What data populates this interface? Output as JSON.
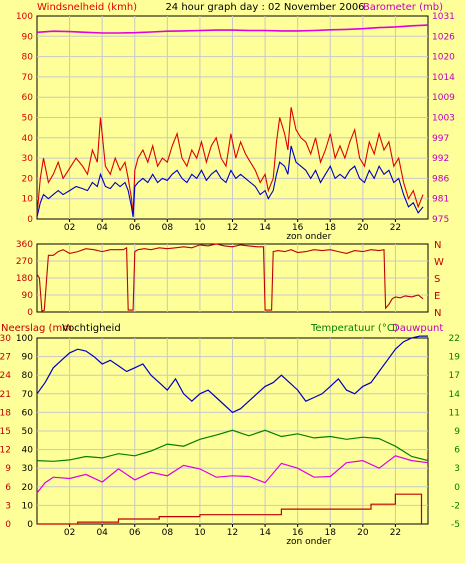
{
  "header": {
    "left_title": "Windsnelheid (kmh)",
    "center_title": "24 hour graph day : 02 November 2006",
    "right_title": "Barometer (mb)"
  },
  "colors": {
    "background": "#FFFF99",
    "plot_bg": "#FFFF99",
    "grid": "#C8C8C8",
    "wind_gust": "#E00000",
    "wind_avg": "#0000C0",
    "barometer": "#E000E0",
    "direction": "#C00000",
    "humidity": "#0000C0",
    "temperature": "#008000",
    "dewpoint": "#E000E0",
    "rain": "#C00000",
    "left_axis_text": "#E00000",
    "right_axis_text": "#C000C0",
    "temp_text": "#008000",
    "dew_text": "#C000C0"
  },
  "chart_data": [
    {
      "type": "line",
      "title": "24 hour graph day : 02 November 2006",
      "ylabel": "Windsnelheid (kmh)",
      "ylabel_right": "Barometer (mb)",
      "ylim": [
        0,
        100
      ],
      "ylim_right": [
        975,
        1031
      ],
      "yticks": [
        0,
        10,
        20,
        30,
        40,
        50,
        60,
        70,
        80,
        90,
        100
      ],
      "yticks_right": [
        975,
        981,
        986,
        992,
        997,
        1003,
        1009,
        1014,
        1020,
        1026,
        1031
      ],
      "xlim": [
        0,
        24
      ],
      "xticks": [
        "02",
        "04",
        "06",
        "08",
        "10",
        "12",
        "14",
        "16",
        "18",
        "20",
        "22"
      ],
      "annotation": "zon onder",
      "series": [
        {
          "name": "Windstoten",
          "axis": "left",
          "x": [
            0,
            0.2,
            0.4,
            0.7,
            1.0,
            1.3,
            1.6,
            2.0,
            2.4,
            2.8,
            3.1,
            3.4,
            3.7,
            3.9,
            4.2,
            4.5,
            4.8,
            5.1,
            5.4,
            5.6,
            5.8,
            5.9,
            6.0,
            6.2,
            6.5,
            6.8,
            7.1,
            7.4,
            7.7,
            8.0,
            8.3,
            8.6,
            8.9,
            9.2,
            9.5,
            9.8,
            10.1,
            10.4,
            10.7,
            11.0,
            11.3,
            11.6,
            11.9,
            12.2,
            12.5,
            12.8,
            13.1,
            13.4,
            13.7,
            14.0,
            14.2,
            14.5,
            14.7,
            14.9,
            15.2,
            15.4,
            15.6,
            15.9,
            16.2,
            16.5,
            16.8,
            17.1,
            17.4,
            17.7,
            18.0,
            18.3,
            18.6,
            18.9,
            19.2,
            19.5,
            19.8,
            20.1,
            20.4,
            20.7,
            21.0,
            21.3,
            21.6,
            21.9,
            22.2,
            22.5,
            22.8,
            23.1,
            23.4,
            23.7
          ],
          "values": [
            2,
            20,
            30,
            18,
            22,
            28,
            20,
            25,
            30,
            26,
            22,
            34,
            28,
            50,
            26,
            22,
            30,
            24,
            28,
            20,
            10,
            2,
            24,
            30,
            34,
            28,
            36,
            26,
            30,
            28,
            36,
            42,
            30,
            26,
            34,
            30,
            38,
            28,
            36,
            40,
            30,
            26,
            42,
            30,
            38,
            32,
            28,
            24,
            18,
            22,
            14,
            20,
            38,
            50,
            42,
            34,
            55,
            44,
            40,
            38,
            32,
            40,
            28,
            34,
            42,
            30,
            36,
            30,
            38,
            44,
            30,
            26,
            38,
            32,
            42,
            34,
            38,
            26,
            30,
            18,
            10,
            14,
            6,
            12
          ]
        },
        {
          "name": "Windsnelheid",
          "axis": "left",
          "x": [
            0,
            0.2,
            0.4,
            0.7,
            1.0,
            1.3,
            1.6,
            2.0,
            2.4,
            2.8,
            3.1,
            3.4,
            3.7,
            3.9,
            4.2,
            4.5,
            4.8,
            5.1,
            5.4,
            5.6,
            5.8,
            5.9,
            6.0,
            6.2,
            6.5,
            6.8,
            7.1,
            7.4,
            7.7,
            8.0,
            8.3,
            8.6,
            8.9,
            9.2,
            9.5,
            9.8,
            10.1,
            10.4,
            10.7,
            11.0,
            11.3,
            11.6,
            11.9,
            12.2,
            12.5,
            12.8,
            13.1,
            13.4,
            13.7,
            14.0,
            14.2,
            14.5,
            14.7,
            14.9,
            15.2,
            15.4,
            15.6,
            15.9,
            16.2,
            16.5,
            16.8,
            17.1,
            17.4,
            17.7,
            18.0,
            18.3,
            18.6,
            18.9,
            19.2,
            19.5,
            19.8,
            20.1,
            20.4,
            20.7,
            21.0,
            21.3,
            21.6,
            21.9,
            22.2,
            22.5,
            22.8,
            23.1,
            23.4,
            23.7
          ],
          "values": [
            1,
            8,
            12,
            10,
            12,
            14,
            12,
            14,
            16,
            15,
            14,
            18,
            16,
            22,
            16,
            15,
            18,
            16,
            18,
            14,
            6,
            1,
            16,
            18,
            20,
            18,
            22,
            18,
            20,
            19,
            22,
            24,
            20,
            18,
            22,
            20,
            24,
            19,
            22,
            24,
            20,
            18,
            24,
            20,
            22,
            20,
            18,
            16,
            12,
            14,
            10,
            14,
            22,
            28,
            26,
            22,
            36,
            28,
            26,
            24,
            20,
            24,
            18,
            22,
            26,
            20,
            22,
            20,
            24,
            26,
            20,
            18,
            24,
            20,
            26,
            22,
            24,
            18,
            20,
            12,
            6,
            8,
            3,
            6
          ]
        },
        {
          "name": "Barometer",
          "axis": "right",
          "x": [
            0,
            1,
            2,
            3,
            4,
            5,
            6,
            7,
            8,
            9,
            10,
            11,
            12,
            13,
            14,
            15,
            16,
            17,
            18,
            19,
            20,
            21,
            22,
            23,
            24
          ],
          "values": [
            1026.5,
            1026.8,
            1026.7,
            1026.5,
            1026.3,
            1026.3,
            1026.4,
            1026.6,
            1026.8,
            1026.9,
            1027.0,
            1027.1,
            1027.1,
            1027.0,
            1027.0,
            1026.9,
            1026.9,
            1027.0,
            1027.2,
            1027.3,
            1027.5,
            1027.8,
            1028.0,
            1028.3,
            1028.5
          ]
        }
      ]
    },
    {
      "type": "line",
      "ylim": [
        0,
        360
      ],
      "yticks": [
        0,
        90,
        180,
        270,
        360
      ],
      "yticks_right": [
        "N",
        "E",
        "S",
        "W",
        "N"
      ],
      "xlim": [
        0,
        24
      ],
      "series": [
        {
          "name": "Windrichting",
          "x": [
            0,
            0.15,
            0.3,
            0.45,
            0.7,
            1.0,
            1.3,
            1.6,
            2.0,
            2.5,
            3.0,
            3.5,
            4.0,
            4.5,
            5.0,
            5.3,
            5.5,
            5.6,
            5.9,
            6.0,
            6.2,
            6.6,
            7.0,
            7.5,
            8.0,
            8.5,
            9.0,
            9.5,
            10.0,
            10.5,
            11.0,
            11.5,
            12.0,
            12.5,
            13.0,
            13.5,
            13.9,
            14.0,
            14.4,
            14.5,
            14.8,
            15.2,
            15.6,
            16.0,
            16.5,
            17.0,
            17.5,
            18.0,
            18.5,
            19.0,
            19.5,
            20.0,
            20.5,
            21.0,
            21.3,
            21.4,
            21.6,
            21.8,
            22.0,
            22.3,
            22.6,
            23.0,
            23.4,
            23.7
          ],
          "values": [
            200,
            180,
            5,
            10,
            300,
            300,
            320,
            330,
            310,
            320,
            335,
            330,
            320,
            330,
            330,
            330,
            340,
            10,
            10,
            320,
            330,
            335,
            330,
            340,
            335,
            340,
            345,
            340,
            355,
            350,
            360,
            350,
            345,
            355,
            350,
            345,
            345,
            10,
            10,
            320,
            325,
            320,
            330,
            315,
            320,
            330,
            325,
            330,
            320,
            310,
            325,
            320,
            330,
            325,
            330,
            20,
            40,
            70,
            80,
            75,
            85,
            80,
            90,
            70
          ]
        }
      ]
    },
    {
      "type": "line",
      "ylabel": "Neerslag (mm) / Vochtigheid",
      "ylabel_right": "Temperatuur (°C) / Dauwpunt",
      "ylim": [
        0,
        30
      ],
      "yticks_rain": [
        0,
        3,
        6,
        9,
        12,
        15,
        18,
        21,
        24,
        27,
        30
      ],
      "yticks_humidity": [
        0,
        10,
        20,
        30,
        40,
        50,
        60,
        70,
        80,
        90,
        100
      ],
      "ylim_right": [
        -5,
        22
      ],
      "yticks_right": [
        -5,
        -2,
        0,
        3,
        6,
        9,
        11,
        14,
        17,
        19,
        22
      ],
      "xlim": [
        0,
        24
      ],
      "xticks": [
        "02",
        "04",
        "06",
        "08",
        "10",
        "12",
        "14",
        "16",
        "18",
        "20",
        "22"
      ],
      "annotation": "zon onder",
      "series": [
        {
          "name": "Vochtigheid",
          "axis": "humidity",
          "x": [
            0,
            0.5,
            1.0,
            1.5,
            2.0,
            2.5,
            3.0,
            3.5,
            4.0,
            4.5,
            5.0,
            5.5,
            6.0,
            6.5,
            7.0,
            7.5,
            8.0,
            8.5,
            9.0,
            9.5,
            10.0,
            10.5,
            11.0,
            11.5,
            12.0,
            12.5,
            13.0,
            13.5,
            14.0,
            14.5,
            15.0,
            15.5,
            16.0,
            16.5,
            17.0,
            17.5,
            18.0,
            18.5,
            19.0,
            19.5,
            20.0,
            20.5,
            21.0,
            21.5,
            22.0,
            22.5,
            23.0,
            23.5,
            24.0
          ],
          "values": [
            70,
            76,
            84,
            88,
            92,
            94,
            93,
            90,
            86,
            88,
            85,
            82,
            84,
            86,
            80,
            76,
            72,
            78,
            70,
            66,
            70,
            72,
            68,
            64,
            60,
            62,
            66,
            70,
            74,
            76,
            80,
            76,
            72,
            66,
            68,
            70,
            74,
            78,
            72,
            70,
            74,
            76,
            82,
            88,
            94,
            98,
            100,
            101,
            101
          ]
        },
        {
          "name": "Temperatuur",
          "axis": "right",
          "x": [
            0,
            1,
            2,
            3,
            4,
            5,
            6,
            7,
            8,
            9,
            10,
            11,
            12,
            13,
            14,
            15,
            16,
            17,
            18,
            19,
            20,
            21,
            22,
            23,
            24
          ],
          "values": [
            4.2,
            4.1,
            4.3,
            4.8,
            4.6,
            5.2,
            4.9,
            5.6,
            6.6,
            6.3,
            7.3,
            7.9,
            8.6,
            7.8,
            8.6,
            7.7,
            8.1,
            7.5,
            7.7,
            7.3,
            7.6,
            7.4,
            6.3,
            4.8,
            4.2
          ]
        },
        {
          "name": "Dauwpunt",
          "axis": "right",
          "x": [
            0,
            0.5,
            1,
            2,
            3,
            4,
            5,
            6,
            7,
            8,
            9,
            10,
            11,
            12,
            13,
            14,
            15,
            16,
            17,
            18,
            19,
            20,
            21,
            22,
            23,
            24
          ],
          "values": [
            -0.5,
            1.0,
            1.8,
            1.6,
            2.2,
            1.1,
            3.0,
            1.4,
            2.5,
            2.0,
            3.5,
            3.0,
            1.8,
            2.0,
            1.9,
            1.0,
            3.8,
            3.1,
            1.8,
            1.9,
            3.9,
            4.2,
            3.1,
            4.9,
            4.2,
            3.9
          ]
        },
        {
          "name": "Neerslag",
          "axis": "rain",
          "x": [
            0,
            2.5,
            2.5,
            5.0,
            5.0,
            7.5,
            7.5,
            10.0,
            10.0,
            15.0,
            15.0,
            20.5,
            20.5,
            22.0,
            22.0,
            23.6,
            23.6
          ],
          "values": [
            0,
            0,
            0.3,
            0.3,
            0.8,
            0.8,
            1.2,
            1.2,
            1.5,
            1.5,
            2.4,
            2.4,
            3.2,
            3.2,
            4.8,
            4.8,
            0
          ]
        }
      ]
    }
  ],
  "panel3_labels": {
    "left_title": "Neerslag (mm",
    "left_title2": "Vochtigheid",
    "right_title": "Temperatuur (°C)",
    "right_title2": "Dauwpunt"
  }
}
